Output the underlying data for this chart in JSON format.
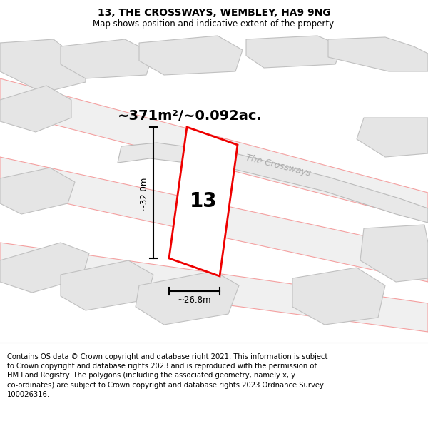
{
  "title": "13, THE CROSSWAYS, WEMBLEY, HA9 9NG",
  "subtitle": "Map shows position and indicative extent of the property.",
  "footer": "Contains OS data © Crown copyright and database right 2021. This information is subject\nto Crown copyright and database rights 2023 and is reproduced with the permission of\nHM Land Registry. The polygons (including the associated geometry, namely x, y\nco-ordinates) are subject to Crown copyright and database rights 2023 Ordnance Survey\n100026316.",
  "area_label": "~371m²/~0.092ac.",
  "property_number": "13",
  "width_label": "~26.8m",
  "height_label": "~32.0m",
  "plot_stroke": "#ee0000",
  "pink_stroke": "#f4a0a0",
  "gray_fill": "#e5e5e5",
  "gray_edge": "#c0c0c0",
  "street_label": "The Crossways",
  "title_fontsize": 10,
  "subtitle_fontsize": 8.5,
  "footer_fontsize": 7.2,
  "area_fontsize": 14,
  "number_fontsize": 20
}
